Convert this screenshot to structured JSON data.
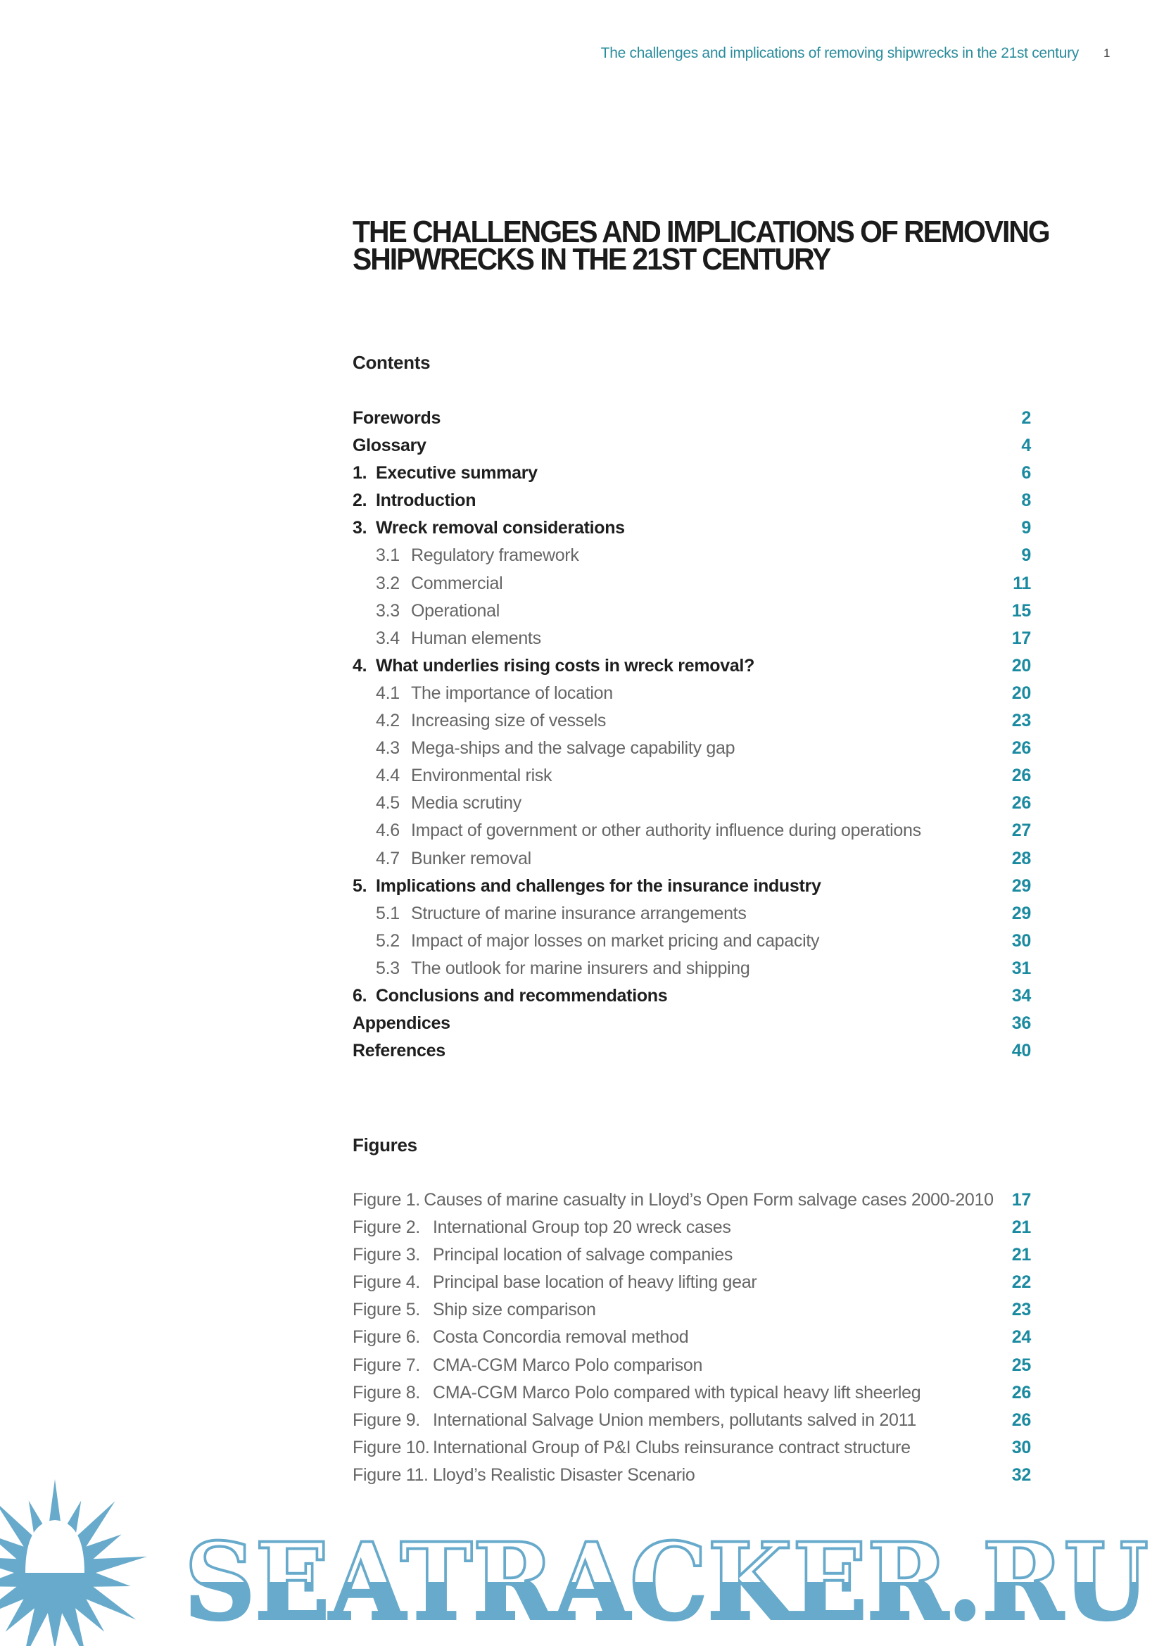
{
  "header": {
    "running_title": "The challenges and implications of removing shipwrecks in the 21st century",
    "page_number": "1"
  },
  "title": {
    "line1": "THE CHALLENGES AND IMPLICATIONS OF REMOVING",
    "line2": "SHIPWRECKS IN THE 21ST CENTURY"
  },
  "contents": {
    "heading": "Contents",
    "items": [
      {
        "num": "",
        "label": "Forewords",
        "page": "2",
        "level": "main"
      },
      {
        "num": "",
        "label": "Glossary",
        "page": "4",
        "level": "main"
      },
      {
        "num": "1.",
        "label": "Executive summary",
        "page": "6",
        "level": "main"
      },
      {
        "num": "2.",
        "label": "Introduction",
        "page": "8",
        "level": "main"
      },
      {
        "num": "3.",
        "label": "Wreck removal considerations",
        "page": "9",
        "level": "main"
      },
      {
        "num": "3.1",
        "label": "Regulatory framework",
        "page": "9",
        "level": "sub"
      },
      {
        "num": "3.2",
        "label": "Commercial",
        "page": "11",
        "level": "sub"
      },
      {
        "num": "3.3",
        "label": "Operational",
        "page": "15",
        "level": "sub"
      },
      {
        "num": "3.4",
        "label": "Human elements",
        "page": "17",
        "level": "sub"
      },
      {
        "num": "4.",
        "label": "What underlies rising costs in wreck removal?",
        "page": "20",
        "level": "main"
      },
      {
        "num": "4.1",
        "label": "The importance of location",
        "page": "20",
        "level": "sub"
      },
      {
        "num": "4.2",
        "label": "Increasing size of vessels",
        "page": "23",
        "level": "sub"
      },
      {
        "num": "4.3",
        "label": "Mega-ships and the salvage capability gap",
        "page": "26",
        "level": "sub"
      },
      {
        "num": "4.4",
        "label": "Environmental risk",
        "page": "26",
        "level": "sub"
      },
      {
        "num": "4.5",
        "label": "Media scrutiny",
        "page": "26",
        "level": "sub"
      },
      {
        "num": "4.6",
        "label": "Impact of government or other authority influence during operations",
        "page": "27",
        "level": "sub"
      },
      {
        "num": "4.7",
        "label": "Bunker removal",
        "page": "28",
        "level": "sub"
      },
      {
        "num": "5.",
        "label": "Implications and challenges for the insurance industry",
        "page": "29",
        "level": "main"
      },
      {
        "num": "5.1",
        "label": "Structure of marine insurance arrangements",
        "page": "29",
        "level": "sub"
      },
      {
        "num": "5.2",
        "label": "Impact of major losses on market pricing and capacity",
        "page": "30",
        "level": "sub"
      },
      {
        "num": "5.3",
        "label": "The outlook for marine insurers and shipping",
        "page": "31",
        "level": "sub"
      },
      {
        "num": "6.",
        "label": "Conclusions and recommendations",
        "page": "34",
        "level": "main"
      },
      {
        "num": "",
        "label": "Appendices",
        "page": "36",
        "level": "main"
      },
      {
        "num": "",
        "label": "References",
        "page": "40",
        "level": "main"
      }
    ]
  },
  "figures": {
    "heading": "Figures",
    "items": [
      {
        "num": "Figure 1.",
        "label": "Causes of marine casualty in Lloyd’s Open Form salvage cases 2000-2010",
        "page": "17"
      },
      {
        "num": "Figure 2.",
        "label": "International Group top 20 wreck cases",
        "page": "21"
      },
      {
        "num": "Figure 3.",
        "label": "Principal location of salvage companies",
        "page": "21"
      },
      {
        "num": "Figure 4.",
        "label": "Principal base location of heavy lifting gear",
        "page": "22"
      },
      {
        "num": "Figure 5.",
        "label": "Ship size comparison",
        "page": "23"
      },
      {
        "num": "Figure 6.",
        "label": "Costa Concordia removal method",
        "page": "24"
      },
      {
        "num": "Figure 7.",
        "label": "CMA-CGM Marco Polo comparison",
        "page": "25"
      },
      {
        "num": "Figure 8.",
        "label": "CMA-CGM Marco Polo compared with typical heavy lift sheerleg",
        "page": "26"
      },
      {
        "num": "Figure 9.",
        "label": "International Salvage Union members, pollutants salved in 2011",
        "page": "26"
      },
      {
        "num": "Figure 10.",
        "label": "International Group of P&I Clubs reinsurance contract structure",
        "page": "30"
      },
      {
        "num": "Figure 11.",
        "label": "Lloyd’s Realistic Disaster Scenario",
        "page": "32"
      }
    ]
  },
  "watermark": {
    "text": "SEATRACKER.RU",
    "color": "#67aacb"
  },
  "colors": {
    "accent": "#1a8aa0",
    "text": "#222222",
    "muted": "#666666"
  }
}
